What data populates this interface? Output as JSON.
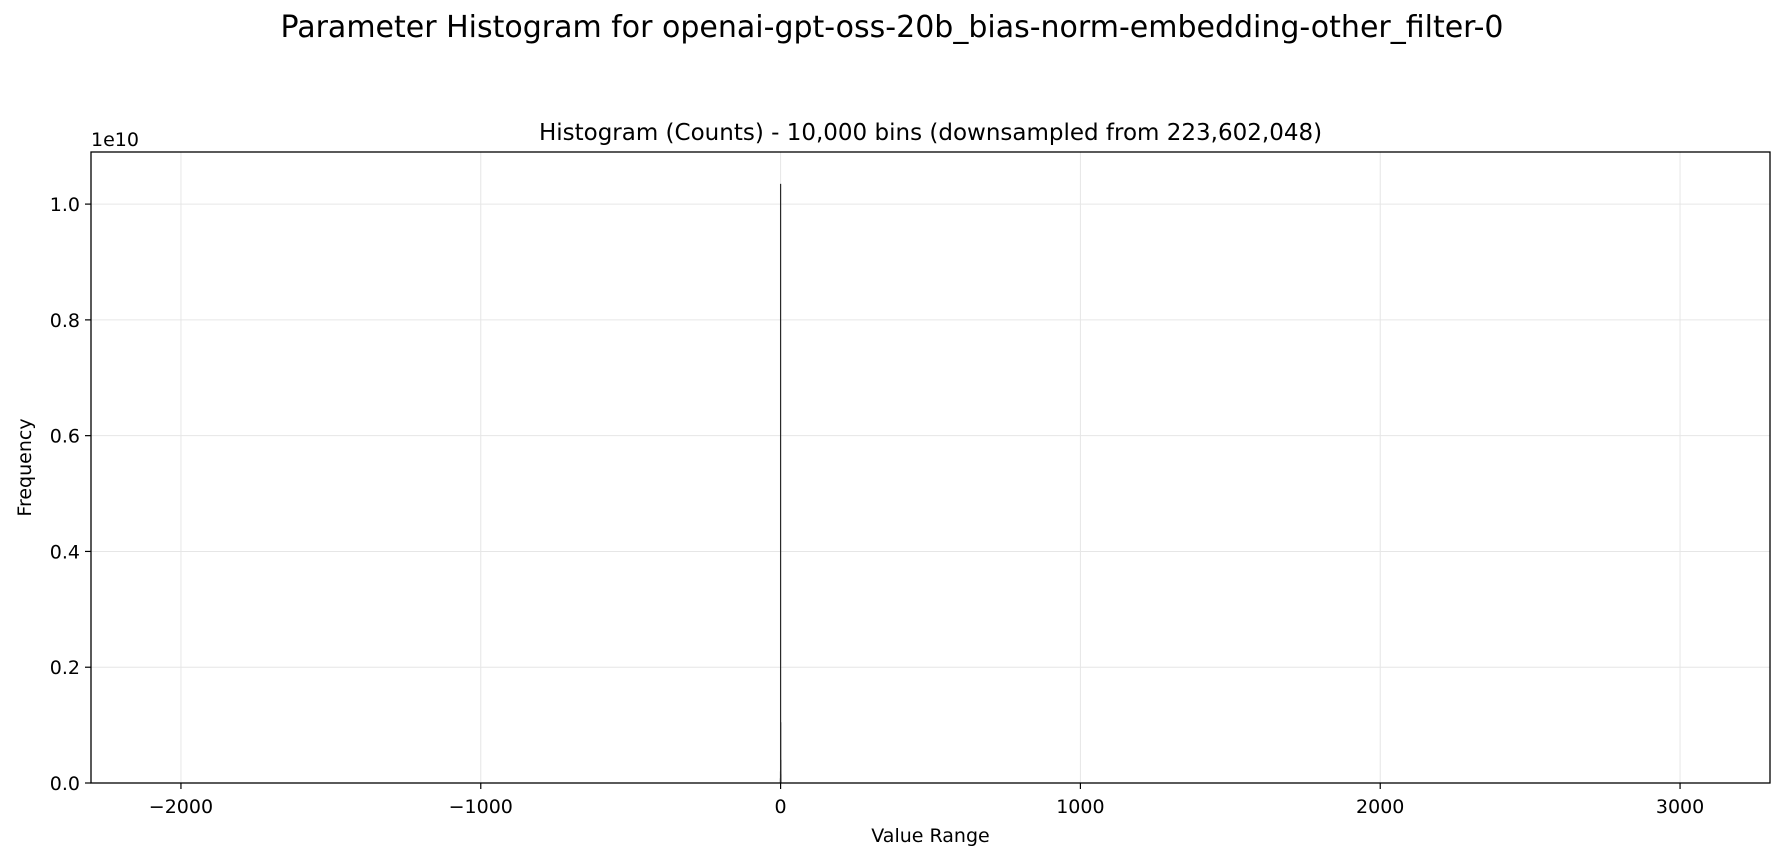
{
  "figure": {
    "title": "Parameter Histogram for openai-gpt-oss-20b_bias-norm-embedding-other_filter-0"
  },
  "chart_data": {
    "type": "bar",
    "title": "Histogram (Counts) - 10,000 bins (downsampled from 223,602,048)",
    "xlabel": "Value Range",
    "ylabel": "Frequency",
    "y_offset_text": "1e10",
    "xlim": [
      -2300,
      3300
    ],
    "ylim": [
      0,
      1.09
    ],
    "y_scale_factor": 10000000000,
    "xticks": [
      -2000,
      -1000,
      0,
      1000,
      2000,
      3000
    ],
    "xtick_labels": [
      "−2000",
      "−1000",
      "0",
      "1000",
      "2000",
      "3000"
    ],
    "yticks": [
      0.0,
      0.2,
      0.4,
      0.6,
      0.8,
      1.0
    ],
    "ytick_labels": [
      "0.0",
      "0.2",
      "0.4",
      "0.6",
      "0.8",
      "1.0"
    ],
    "grid": true,
    "bar_color": "#2a2a2a",
    "bins": [
      {
        "x": -0.4,
        "value": 0.008
      },
      {
        "x": -0.2,
        "value": 0.02
      },
      {
        "x": 0.0,
        "value": 1.035
      },
      {
        "x": 0.2,
        "value": 0.105
      },
      {
        "x": 0.4,
        "value": 0.04
      },
      {
        "x": 0.6,
        "value": 0.015
      },
      {
        "x": 0.8,
        "value": 0.006
      }
    ]
  }
}
